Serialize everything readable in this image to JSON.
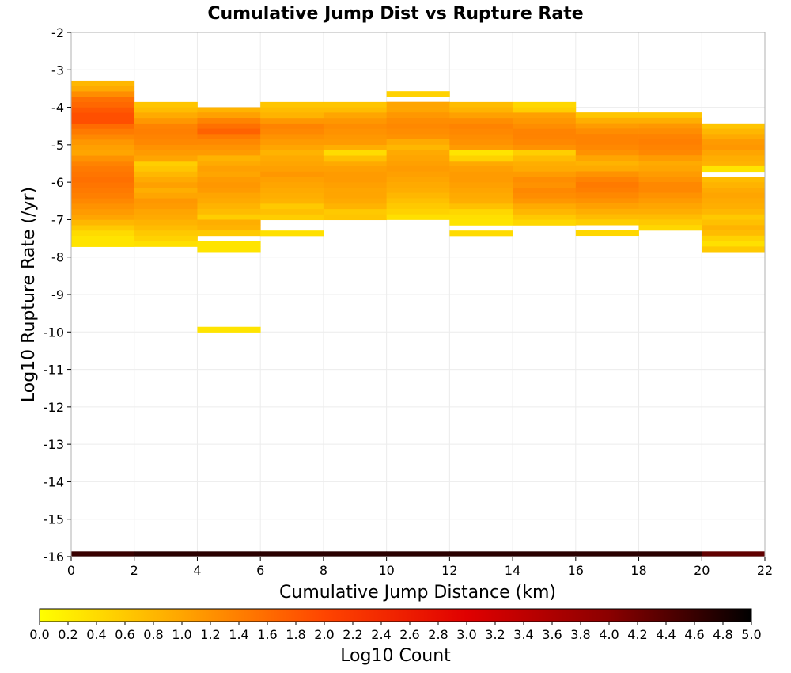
{
  "chart_data": {
    "type": "heatmap",
    "title": "Cumulative Jump Dist vs Rupture Rate",
    "xlabel": "Cumulative Jump Distance (km)",
    "ylabel": "Log10 Rupture Rate (/yr)",
    "xlim": [
      0,
      22
    ],
    "ylim": [
      -16,
      -2
    ],
    "x_ticks": [
      "0",
      "2",
      "4",
      "6",
      "8",
      "10",
      "12",
      "14",
      "16",
      "18",
      "20",
      "22"
    ],
    "y_ticks": [
      "-2",
      "-3",
      "-4",
      "-5",
      "-6",
      "-7",
      "-8",
      "-9",
      "-10",
      "-11",
      "-12",
      "-13",
      "-14",
      "-15",
      "-16"
    ],
    "grid": true,
    "colorbar": {
      "label": "Log10 Count",
      "min": 0,
      "max": 5,
      "ticks": [
        "0.0",
        "0.2",
        "0.4",
        "0.6",
        "0.8",
        "1.0",
        "1.2",
        "1.4",
        "1.6",
        "1.8",
        "2.0",
        "2.2",
        "2.4",
        "2.6",
        "2.8",
        "3.0",
        "3.2",
        "3.4",
        "3.6",
        "3.8",
        "4.0",
        "4.2",
        "4.4",
        "4.6",
        "4.8",
        "5.0"
      ],
      "colors": [
        "#ffff00",
        "#ffa500",
        "#ff4500",
        "#e00000",
        "#8b0000",
        "#000000"
      ]
    },
    "x_bin_width": 2,
    "y_bin_width": 0.143,
    "columns": [
      {
        "x": 1,
        "y_start": -3.36,
        "values": [
          0.8,
          0.95,
          1.25,
          1.55,
          1.65,
          1.8,
          1.9,
          1.9,
          1.6,
          1.45,
          1.3,
          1.15,
          1.05,
          1.0,
          1.2,
          1.35,
          1.45,
          1.5,
          1.55,
          1.5,
          1.45,
          1.4,
          1.3,
          1.2,
          1.1,
          1.0,
          0.8,
          0.6,
          0.4,
          0.3,
          0.3
        ]
      },
      {
        "x": 3,
        "y_start": -3.93,
        "values": [
          0.65,
          0.75,
          0.95,
          1.15,
          1.35,
          1.4,
          1.35,
          1.3,
          1.2,
          1.1,
          1.0,
          0.55,
          0.65,
          0.8,
          0.95,
          1.05,
          0.9,
          1.0,
          1.15,
          1.1,
          1.0,
          0.95,
          0.85,
          0.75,
          0.6,
          0.5,
          0.35
        ]
      },
      {
        "x": 5,
        "y_start": -4.07,
        "values": [
          0.85,
          1.05,
          1.35,
          1.55,
          1.7,
          1.45,
          1.3,
          1.2,
          1.1,
          0.85,
          0.95,
          1.05,
          1.0,
          1.1,
          1.15,
          1.1,
          1.0,
          0.95,
          0.85,
          0.75,
          0.55,
          0.9,
          0.85,
          0.6,
          0.0,
          0.3,
          0.3,
          0,
          0,
          0,
          0,
          0,
          0,
          0,
          0,
          0,
          0,
          0,
          0,
          0,
          0,
          0.3
        ]
      },
      {
        "x": 7,
        "y_start": -3.93,
        "values": [
          0.65,
          0.75,
          0.85,
          1.15,
          1.35,
          1.3,
          1.2,
          1.1,
          1.0,
          0.85,
          0.95,
          1.0,
          1.05,
          1.15,
          1.05,
          1.0,
          0.95,
          0.9,
          0.85,
          0.6,
          0.7,
          0.55,
          0.0,
          0.0,
          0.35
        ]
      },
      {
        "x": 9,
        "y_start": -3.93,
        "values": [
          0.65,
          0.75,
          1.0,
          1.15,
          1.25,
          1.2,
          1.15,
          1.1,
          0.9,
          0.4,
          0.7,
          0.95,
          1.05,
          1.1,
          1.1,
          1.05,
          1.0,
          1.0,
          0.95,
          0.85,
          0.6,
          0.65
        ]
      },
      {
        "x": 11,
        "y_start": -3.64,
        "values": [
          0.5,
          0.0,
          1.0,
          1.0,
          1.15,
          1.25,
          1.3,
          1.25,
          1.2,
          0.95,
          0.8,
          0.95,
          1.0,
          1.05,
          1.1,
          1.05,
          1.0,
          0.95,
          0.9,
          0.8,
          0.7,
          0.6,
          0.5,
          0.35
        ]
      },
      {
        "x": 13,
        "y_start": -3.93,
        "values": [
          0.75,
          0.85,
          1.05,
          1.25,
          1.35,
          1.3,
          1.25,
          1.2,
          1.1,
          0.3,
          0.5,
          0.95,
          1.05,
          1.1,
          1.1,
          1.05,
          1.0,
          0.95,
          0.9,
          0.7,
          0.45,
          0.35,
          0.3,
          0.0,
          0.4
        ]
      },
      {
        "x": 15,
        "y_start": -3.93,
        "values": [
          0.45,
          0.55,
          1.05,
          1.15,
          1.25,
          1.35,
          1.35,
          1.3,
          1.2,
          0.55,
          0.75,
          0.9,
          0.95,
          1.1,
          1.25,
          1.2,
          1.3,
          1.25,
          1.15,
          0.95,
          0.8,
          0.6,
          0.45
        ]
      },
      {
        "x": 17,
        "y_start": -4.21,
        "values": [
          0.65,
          0.9,
          1.1,
          1.25,
          1.35,
          1.35,
          1.3,
          1.2,
          1.0,
          0.85,
          0.95,
          1.2,
          1.35,
          1.45,
          1.4,
          1.3,
          1.2,
          1.05,
          0.9,
          0.75,
          0.55,
          0.0,
          0.45
        ]
      },
      {
        "x": 19,
        "y_start": -4.21,
        "values": [
          0.65,
          0.9,
          1.15,
          1.25,
          1.35,
          1.4,
          1.35,
          1.3,
          1.1,
          0.95,
          1.0,
          1.1,
          1.2,
          1.3,
          1.3,
          1.2,
          1.1,
          1.0,
          0.9,
          0.75,
          0.6,
          0.45
        ]
      },
      {
        "x": 21,
        "y_start": -4.5,
        "values": [
          0.65,
          0.8,
          0.95,
          1.1,
          1.15,
          1.0,
          0.9,
          0.85,
          0.3,
          0.0,
          0.75,
          0.85,
          0.95,
          1.0,
          0.95,
          0.9,
          0.8,
          0.6,
          0.7,
          0.85,
          0.75,
          0.5,
          0.35,
          0.6
        ]
      }
    ],
    "bottom_row": {
      "y": -15.93,
      "values": [
        4.6,
        4.7,
        4.7,
        4.7,
        4.7,
        4.7,
        4.7,
        4.7,
        4.7,
        4.7,
        4.3
      ]
    }
  }
}
